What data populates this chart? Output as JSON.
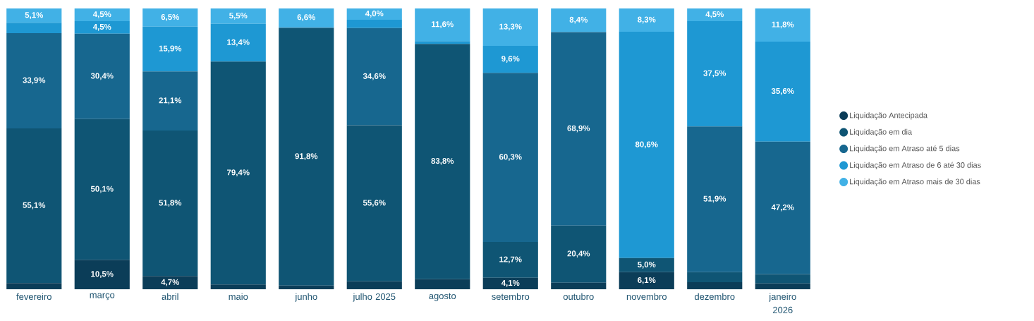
{
  "chart_data": {
    "type": "bar",
    "stacked": true,
    "legend": "right",
    "categories": [
      "fevereiro",
      "março",
      "abril",
      "maio",
      "junho",
      "julho 2025",
      "agosto",
      "setembro",
      "outubro",
      "novembro",
      "dezembro",
      "janeiro 2026"
    ],
    "series": [
      {
        "name": "Liquidação Antecipada",
        "color": "#0b3d58",
        "values": [
          2.2,
          10.5,
          4.7,
          1.7,
          1.3,
          2.8,
          3.6,
          4.1,
          2.3,
          6.1,
          2.5,
          2.1
        ],
        "value_labels": [
          null,
          "10,5%",
          "4,7%",
          null,
          null,
          null,
          null,
          "4,1%",
          null,
          "6,1%",
          null,
          null
        ]
      },
      {
        "name": "Liquidação em dia",
        "color": "#0f5574",
        "values": [
          55.1,
          50.1,
          51.8,
          79.4,
          91.8,
          55.6,
          83.8,
          12.7,
          20.4,
          5.0,
          3.6,
          3.3
        ],
        "value_labels": [
          "55,1%",
          "50,1%",
          "51,8%",
          "79,4%",
          "91,8%",
          "55,6%",
          "83,8%",
          "12,7%",
          "20,4%",
          "5,0%",
          null,
          null
        ]
      },
      {
        "name": "Liquidação em Atraso até 5 dias",
        "color": "#17678f",
        "values": [
          33.9,
          30.4,
          21.1,
          0,
          0,
          34.6,
          0,
          60.3,
          68.9,
          0,
          51.9,
          47.2
        ],
        "value_labels": [
          "33,9%",
          "30,4%",
          "21,1%",
          null,
          null,
          "34,6%",
          null,
          "60,3%",
          "68,9%",
          null,
          "51,9%",
          "47,2%"
        ]
      },
      {
        "name": "Liquidação em Atraso de 6 até 30 dias",
        "color": "#1e98d3",
        "values": [
          3.7,
          4.5,
          15.9,
          13.4,
          0.3,
          3.0,
          1.0,
          9.6,
          0,
          80.6,
          37.5,
          35.6
        ],
        "value_labels": [
          null,
          "4,5%",
          "15,9%",
          "13,4%",
          null,
          null,
          null,
          "9,6%",
          null,
          "80,6%",
          "37,5%",
          "35,6%"
        ]
      },
      {
        "name": "Liquidação em Atraso mais de 30 dias",
        "color": "#41b1e6",
        "values": [
          5.1,
          4.5,
          6.5,
          5.5,
          6.6,
          4.0,
          11.6,
          13.3,
          8.4,
          8.3,
          4.5,
          11.8
        ],
        "value_labels": [
          "5,1%",
          "4,5%",
          "6,5%",
          "5,5%",
          "6,6%",
          "4,0%",
          "11,6%",
          "13,3%",
          "8,4%",
          "8,3%",
          "4,5%",
          "11,8%"
        ]
      }
    ]
  }
}
